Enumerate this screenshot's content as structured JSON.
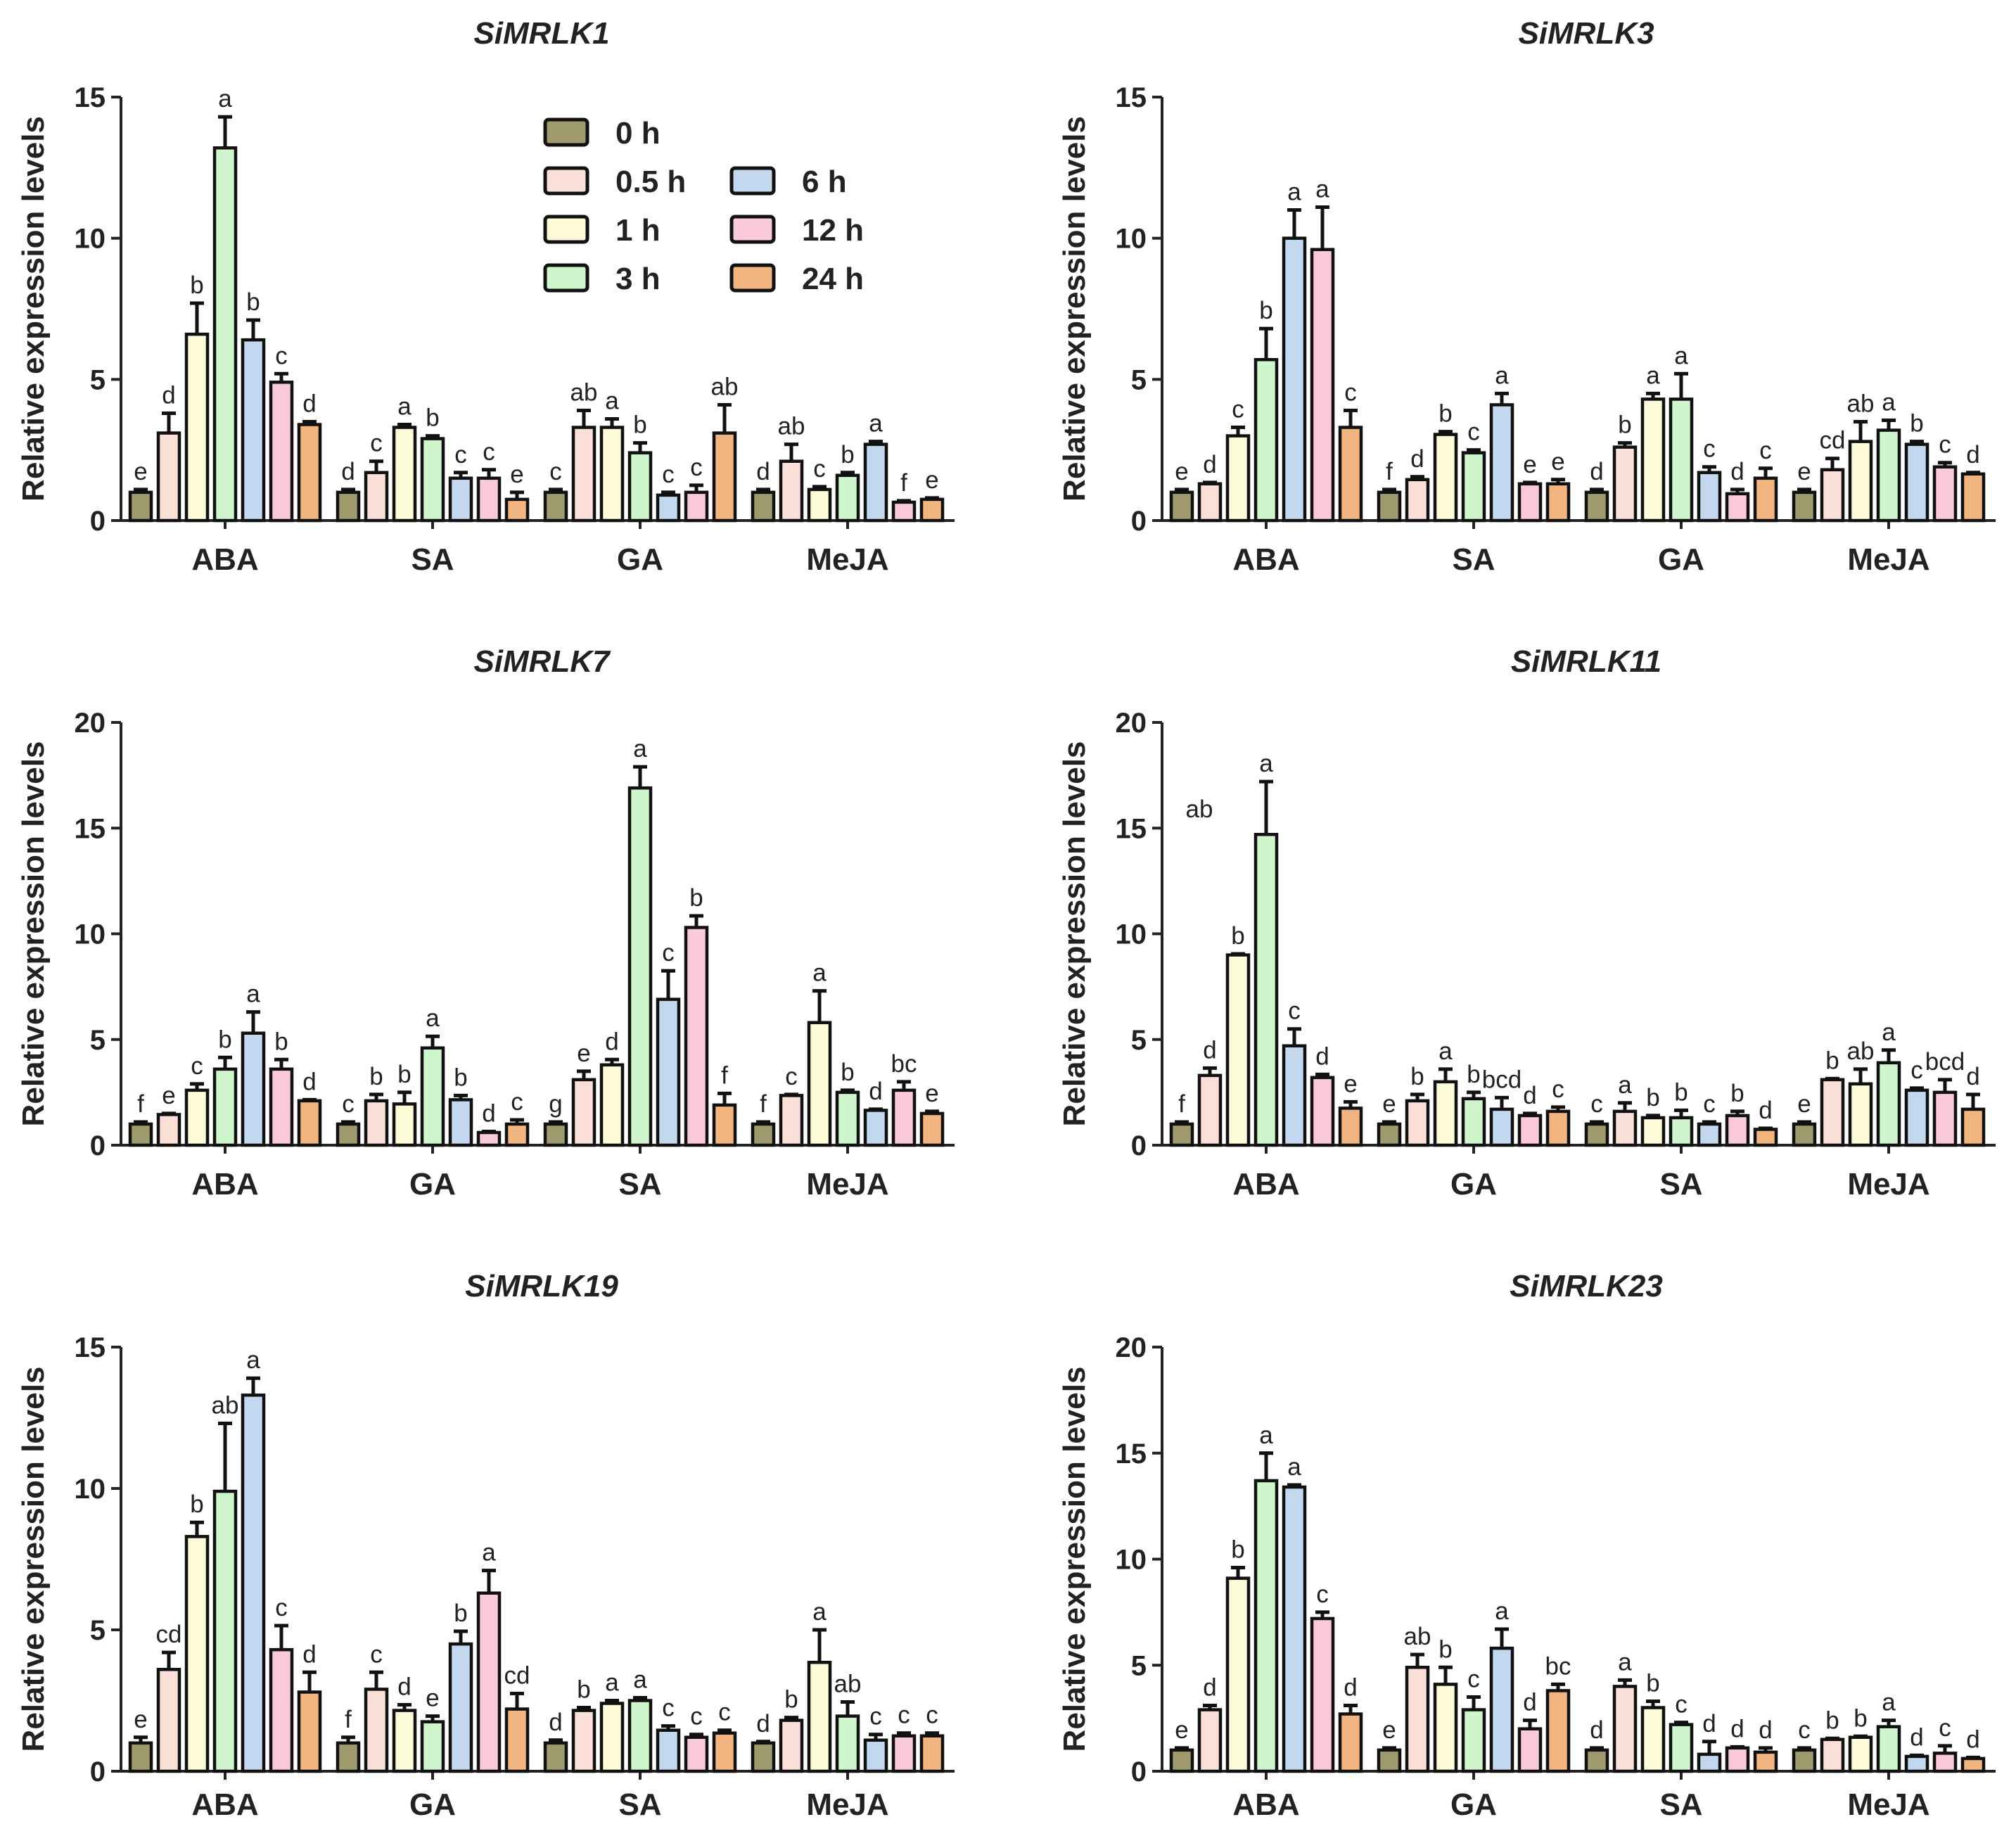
{
  "figure": {
    "y_axis_label": "Relative expression levels",
    "timepoints": [
      "0 h",
      "0.5 h",
      "1 h",
      "3 h",
      "6 h",
      "12 h",
      "24 h"
    ],
    "colors": [
      "#9e9a6e",
      "#fbe0d8",
      "#fefbd8",
      "#cef5cb",
      "#c3d8ee",
      "#fbc9dc",
      "#f3b57f"
    ]
  },
  "legend": {
    "items": [
      "0 h",
      "0.5 h",
      "1 h",
      "3 h",
      "6 h",
      "12 h",
      "24 h"
    ]
  },
  "chart_data": [
    {
      "type": "bar",
      "title": "SiMRLK1",
      "ylabel": "Relative expression levels",
      "ylim": [
        0,
        15
      ],
      "yticks": [
        0,
        5,
        10,
        15
      ],
      "categories": [
        "ABA",
        "SA",
        "GA",
        "MeJA"
      ],
      "series": [
        {
          "name": "0 h",
          "values": [
            1.0,
            1.0,
            1.0,
            1.0
          ],
          "errors": [
            0.1,
            0.1,
            0.1,
            0.1
          ],
          "letters": [
            "e",
            "d",
            "c",
            "d"
          ]
        },
        {
          "name": "0.5 h",
          "values": [
            3.1,
            1.7,
            3.3,
            2.1
          ],
          "errors": [
            0.7,
            0.4,
            0.6,
            0.6
          ],
          "letters": [
            "d",
            "c",
            "ab",
            "ab"
          ]
        },
        {
          "name": "1 h",
          "values": [
            6.6,
            3.3,
            3.3,
            1.1
          ],
          "errors": [
            1.1,
            0.1,
            0.3,
            0.1
          ],
          "letters": [
            "b",
            "a",
            "a",
            "c"
          ]
        },
        {
          "name": "3 h",
          "values": [
            13.2,
            2.9,
            2.4,
            1.6
          ],
          "errors": [
            1.1,
            0.1,
            0.35,
            0.1
          ],
          "letters": [
            "a",
            "b",
            "b",
            "b"
          ]
        },
        {
          "name": "6 h",
          "values": [
            6.4,
            1.5,
            0.9,
            2.7
          ],
          "errors": [
            0.7,
            0.2,
            0.1,
            0.1
          ],
          "letters": [
            "b",
            "c",
            "c",
            "a"
          ]
        },
        {
          "name": "12 h",
          "values": [
            4.9,
            1.5,
            1.0,
            0.65
          ],
          "errors": [
            0.3,
            0.3,
            0.25,
            0.05
          ],
          "letters": [
            "c",
            "c",
            "c",
            "f"
          ]
        },
        {
          "name": "24 h",
          "values": [
            3.4,
            0.75,
            3.1,
            0.75
          ],
          "errors": [
            0.1,
            0.25,
            1.0,
            0.05
          ],
          "letters": [
            "d",
            "e",
            "ab",
            "e"
          ]
        }
      ]
    },
    {
      "type": "bar",
      "title": "SiMRLK3",
      "ylabel": "Relative expression levels",
      "ylim": [
        0,
        15
      ],
      "yticks": [
        0,
        5,
        10,
        15
      ],
      "categories": [
        "ABA",
        "SA",
        "GA",
        "MeJA"
      ],
      "series": [
        {
          "name": "0 h",
          "values": [
            1.0,
            1.0,
            1.0,
            1.0
          ],
          "errors": [
            0.1,
            0.1,
            0.1,
            0.1
          ],
          "letters": [
            "e",
            "f",
            "d",
            "e"
          ]
        },
        {
          "name": "0.5 h",
          "values": [
            1.3,
            1.45,
            2.6,
            1.8
          ],
          "errors": [
            0.05,
            0.1,
            0.15,
            0.4
          ],
          "letters": [
            "d",
            "d",
            "b",
            "cd"
          ]
        },
        {
          "name": "1 h",
          "values": [
            3.0,
            3.05,
            4.3,
            2.8
          ],
          "errors": [
            0.3,
            0.1,
            0.2,
            0.7
          ],
          "letters": [
            "c",
            "b",
            "a",
            "ab"
          ]
        },
        {
          "name": "3 h",
          "values": [
            5.7,
            2.4,
            4.3,
            3.2
          ],
          "errors": [
            1.1,
            0.1,
            0.9,
            0.35
          ],
          "letters": [
            "b",
            "c",
            "a",
            "a"
          ]
        },
        {
          "name": "6 h",
          "values": [
            10.0,
            4.1,
            1.7,
            2.7
          ],
          "errors": [
            1.0,
            0.4,
            0.2,
            0.1
          ],
          "letters": [
            "a",
            "a",
            "c",
            "b"
          ]
        },
        {
          "name": "12 h",
          "values": [
            9.6,
            1.3,
            0.95,
            1.9
          ],
          "errors": [
            1.5,
            0.05,
            0.15,
            0.15
          ],
          "letters": [
            "a",
            "e",
            "d",
            "c"
          ]
        },
        {
          "name": "24 h",
          "values": [
            3.3,
            1.3,
            1.5,
            1.65
          ],
          "errors": [
            0.6,
            0.15,
            0.35,
            0.05
          ],
          "letters": [
            "c",
            "e",
            "c",
            "d"
          ]
        }
      ]
    },
    {
      "type": "bar",
      "title": "SiMRLK7",
      "ylabel": "Relative expression levels",
      "ylim": [
        0,
        20
      ],
      "yticks": [
        0,
        5,
        10,
        15,
        20
      ],
      "categories": [
        "ABA",
        "GA",
        "SA",
        "MeJA"
      ],
      "series": [
        {
          "name": "0 h",
          "values": [
            1.0,
            1.0,
            1.0,
            1.0
          ],
          "errors": [
            0.1,
            0.1,
            0.1,
            0.1
          ],
          "letters": [
            "f",
            "c",
            "g",
            "f"
          ]
        },
        {
          "name": "0.5 h",
          "values": [
            1.45,
            2.1,
            3.1,
            2.35
          ],
          "errors": [
            0.05,
            0.3,
            0.4,
            0.05
          ],
          "letters": [
            "e",
            "b",
            "e",
            "c"
          ]
        },
        {
          "name": "1 h",
          "values": [
            2.6,
            1.95,
            3.8,
            5.8
          ],
          "errors": [
            0.3,
            0.55,
            0.25,
            1.5
          ],
          "letters": [
            "c",
            "b",
            "d",
            "a"
          ]
        },
        {
          "name": "3 h",
          "values": [
            3.6,
            4.6,
            16.9,
            2.5
          ],
          "errors": [
            0.55,
            0.55,
            1.0,
            0.1
          ],
          "letters": [
            "b",
            "a",
            "a",
            "b"
          ]
        },
        {
          "name": "6 h",
          "values": [
            5.3,
            2.15,
            6.9,
            1.65
          ],
          "errors": [
            1.0,
            0.2,
            1.35,
            0.05
          ],
          "letters": [
            "a",
            "b",
            "c",
            "d"
          ]
        },
        {
          "name": "12 h",
          "values": [
            3.6,
            0.6,
            10.3,
            2.6
          ],
          "errors": [
            0.45,
            0.05,
            0.55,
            0.4
          ],
          "letters": [
            "b",
            "d",
            "b",
            "bc"
          ]
        },
        {
          "name": "24 h",
          "values": [
            2.1,
            1.0,
            1.9,
            1.5
          ],
          "errors": [
            0.05,
            0.2,
            0.55,
            0.1
          ],
          "letters": [
            "d",
            "c",
            "f",
            "e"
          ]
        }
      ]
    },
    {
      "type": "bar",
      "title": "SiMRLK11",
      "ylabel": "Relative expression levels",
      "ylim": [
        0,
        20
      ],
      "yticks": [
        0,
        5,
        10,
        15,
        20
      ],
      "categories": [
        "ABA",
        "GA",
        "SA",
        "MeJA"
      ],
      "series": [
        {
          "name": "0 h",
          "values": [
            1.0,
            1.0,
            1.0,
            1.0
          ],
          "errors": [
            0.1,
            0.1,
            0.1,
            0.1
          ],
          "letters": [
            "f",
            "e",
            "c",
            "e"
          ]
        },
        {
          "name": "0.5 h",
          "values": [
            3.3,
            2.1,
            1.6,
            3.1
          ],
          "errors": [
            0.35,
            0.3,
            0.4,
            0.05
          ],
          "letters": [
            "d",
            "b",
            "a",
            "b"
          ]
        },
        {
          "name": "1 h",
          "values": [
            9.0,
            3.0,
            1.3,
            2.9
          ],
          "errors": [
            0.05,
            0.6,
            0.1,
            0.7
          ],
          "letters": [
            "b",
            "a",
            "b",
            "ab"
          ]
        },
        {
          "name": "3 h",
          "values": [
            14.7,
            2.2,
            1.3,
            3.9
          ],
          "errors": [
            2.5,
            0.3,
            0.35,
            0.6
          ],
          "letters": [
            "a",
            "b",
            "b",
            "a"
          ]
        },
        {
          "name": "6 h",
          "values": [
            4.7,
            1.7,
            1.0,
            2.6
          ],
          "errors": [
            0.8,
            0.55,
            0.1,
            0.1
          ],
          "letters": [
            "c",
            "bcd",
            "c",
            "c"
          ]
        },
        {
          "name": "12 h",
          "values": [
            3.2,
            1.4,
            1.4,
            2.5
          ],
          "errors": [
            0.15,
            0.1,
            0.2,
            0.6
          ],
          "letters": [
            "d",
            "d",
            "b",
            "bcd"
          ]
        },
        {
          "name": "24 h",
          "values": [
            1.75,
            1.6,
            0.75,
            1.7
          ],
          "errors": [
            0.3,
            0.2,
            0.05,
            0.7
          ],
          "letters": [
            "e",
            "c",
            "d",
            "d"
          ]
        }
      ],
      "annotations": [
        "ab"
      ]
    },
    {
      "type": "bar",
      "title": "SiMRLK19",
      "ylabel": "Relative expression levels",
      "ylim": [
        0,
        15
      ],
      "yticks": [
        0,
        5,
        10,
        15
      ],
      "categories": [
        "ABA",
        "GA",
        "SA",
        "MeJA"
      ],
      "series": [
        {
          "name": "0 h",
          "values": [
            1.0,
            1.0,
            1.0,
            1.0
          ],
          "errors": [
            0.2,
            0.2,
            0.1,
            0.05
          ],
          "letters": [
            "e",
            "f",
            "d",
            "d"
          ]
        },
        {
          "name": "0.5 h",
          "values": [
            3.6,
            2.9,
            2.15,
            1.8
          ],
          "errors": [
            0.6,
            0.6,
            0.1,
            0.1
          ],
          "letters": [
            "cd",
            "c",
            "b",
            "b"
          ]
        },
        {
          "name": "1 h",
          "values": [
            8.3,
            2.15,
            2.4,
            3.85
          ],
          "errors": [
            0.5,
            0.2,
            0.1,
            1.15
          ],
          "letters": [
            "b",
            "d",
            "a",
            "a"
          ]
        },
        {
          "name": "3 h",
          "values": [
            9.9,
            1.75,
            2.5,
            1.95
          ],
          "errors": [
            2.4,
            0.2,
            0.1,
            0.5
          ],
          "letters": [
            "ab",
            "e",
            "a",
            "ab"
          ]
        },
        {
          "name": "6 h",
          "values": [
            13.3,
            4.5,
            1.45,
            1.1
          ],
          "errors": [
            0.6,
            0.45,
            0.15,
            0.2
          ],
          "letters": [
            "a",
            "b",
            "c",
            "c"
          ]
        },
        {
          "name": "12 h",
          "values": [
            4.3,
            6.3,
            1.2,
            1.25
          ],
          "errors": [
            0.85,
            0.8,
            0.1,
            0.1
          ],
          "letters": [
            "c",
            "a",
            "c",
            "c"
          ]
        },
        {
          "name": "24 h",
          "values": [
            2.8,
            2.2,
            1.35,
            1.25
          ],
          "errors": [
            0.7,
            0.55,
            0.1,
            0.1
          ],
          "letters": [
            "d",
            "cd",
            "c",
            "c"
          ]
        }
      ]
    },
    {
      "type": "bar",
      "title": "SiMRLK23",
      "ylabel": "Relative expression levels",
      "ylim": [
        0,
        20
      ],
      "yticks": [
        0,
        5,
        10,
        15,
        20
      ],
      "categories": [
        "ABA",
        "GA",
        "SA",
        "MeJA"
      ],
      "series": [
        {
          "name": "0 h",
          "values": [
            1.0,
            1.0,
            1.0,
            1.0
          ],
          "errors": [
            0.1,
            0.1,
            0.1,
            0.1
          ],
          "letters": [
            "e",
            "e",
            "d",
            "c"
          ]
        },
        {
          "name": "0.5 h",
          "values": [
            2.9,
            4.9,
            4.0,
            1.5
          ],
          "errors": [
            0.2,
            0.6,
            0.3,
            0.05
          ],
          "letters": [
            "d",
            "ab",
            "a",
            "b"
          ]
        },
        {
          "name": "1 h",
          "values": [
            9.1,
            4.1,
            3.0,
            1.6
          ],
          "errors": [
            0.5,
            0.8,
            0.3,
            0.05
          ],
          "letters": [
            "b",
            "b",
            "b",
            "b"
          ]
        },
        {
          "name": "3 h",
          "values": [
            13.7,
            2.9,
            2.2,
            2.1
          ],
          "errors": [
            1.3,
            0.6,
            0.1,
            0.3
          ],
          "letters": [
            "a",
            "c",
            "c",
            "a"
          ]
        },
        {
          "name": "6 h",
          "values": [
            13.4,
            5.8,
            0.8,
            0.7
          ],
          "errors": [
            0.1,
            0.9,
            0.6,
            0.05
          ],
          "letters": [
            "a",
            "a",
            "d",
            "d"
          ]
        },
        {
          "name": "12 h",
          "values": [
            7.2,
            2.0,
            1.1,
            0.85
          ],
          "errors": [
            0.3,
            0.4,
            0.05,
            0.35
          ],
          "letters": [
            "c",
            "d",
            "d",
            "c"
          ]
        },
        {
          "name": "24 h",
          "values": [
            2.7,
            3.8,
            0.9,
            0.6
          ],
          "errors": [
            0.4,
            0.3,
            0.2,
            0.05
          ],
          "letters": [
            "d",
            "bc",
            "d",
            "d"
          ]
        }
      ]
    }
  ]
}
